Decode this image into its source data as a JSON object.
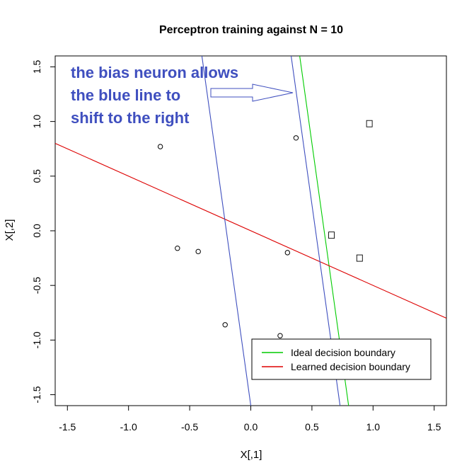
{
  "chart_data": {
    "type": "scatter",
    "title": "Perceptron training against N =  10",
    "xlabel": "X[,1]",
    "ylabel": "X[,2]",
    "xlim": [
      -1.6,
      1.6
    ],
    "ylim": [
      -1.6,
      1.6
    ],
    "xticks": [
      "-1.5",
      "-1.0",
      "-0.5",
      "0.0",
      "0.5",
      "1.0",
      "1.5"
    ],
    "yticks": [
      "-1.5",
      "-1.0",
      "-0.5",
      "0.0",
      "0.5",
      "1.0",
      "1.5"
    ],
    "xtick_values": [
      -1.5,
      -1.0,
      -0.5,
      0.0,
      0.5,
      1.0,
      1.5
    ],
    "ytick_values": [
      -1.5,
      -1.0,
      -0.5,
      0.0,
      0.5,
      1.0,
      1.5
    ],
    "grid": false,
    "legend_position": "bottom-right",
    "series": [
      {
        "marker": "circle",
        "points": [
          {
            "x": -0.74,
            "y": 0.77
          },
          {
            "x": -0.6,
            "y": -0.16
          },
          {
            "x": -0.43,
            "y": -0.19
          },
          {
            "x": -0.21,
            "y": -0.86
          },
          {
            "x": 0.24,
            "y": -0.96
          },
          {
            "x": 0.3,
            "y": -0.2
          },
          {
            "x": 0.37,
            "y": 0.85
          }
        ]
      },
      {
        "marker": "square",
        "points": [
          {
            "x": 0.97,
            "y": 0.98
          },
          {
            "x": 0.66,
            "y": -0.04
          },
          {
            "x": 0.89,
            "y": -0.25
          }
        ]
      }
    ],
    "lines": [
      {
        "name": "Ideal decision boundary",
        "color": "#00cc00",
        "from": {
          "x": 0.4,
          "y": 1.6
        },
        "to": {
          "x": 0.8,
          "y": -1.6
        }
      },
      {
        "name": "Learned decision boundary",
        "color": "#dd0000",
        "from": {
          "x": -1.6,
          "y": 0.8
        },
        "to": {
          "x": 1.6,
          "y": -0.8
        }
      },
      {
        "color": "#3f4fbf",
        "from": {
          "x": -0.4,
          "y": 1.6
        },
        "to": {
          "x": 0.0,
          "y": -1.6
        }
      },
      {
        "color": "#3f4fbf",
        "from": {
          "x": 0.33,
          "y": 1.6
        },
        "to": {
          "x": 0.73,
          "y": -1.6
        }
      }
    ],
    "annotation": {
      "lines": [
        "the bias neuron allows",
        "the blue line to",
        "shift to the right"
      ],
      "color": "#3f4fbf"
    }
  }
}
